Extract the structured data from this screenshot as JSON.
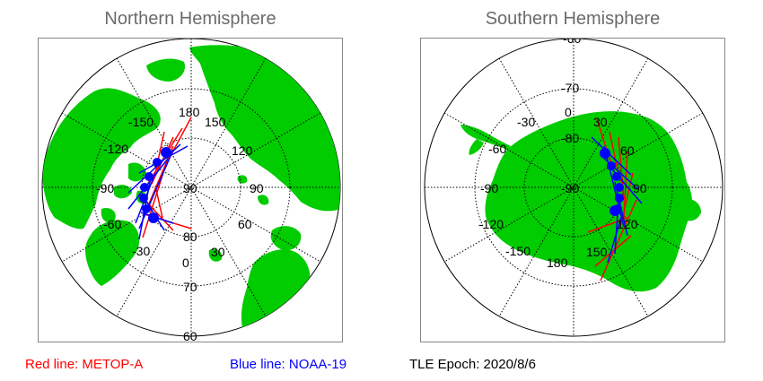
{
  "north": {
    "title": "Northern Hemisphere",
    "lon_labels": [
      "180",
      "150",
      "120",
      "90",
      "60",
      "30",
      "0",
      "-30",
      "-60",
      "-90",
      "-120",
      "-150"
    ],
    "lat_labels": [
      "90",
      "80",
      "70",
      "60"
    ]
  },
  "south": {
    "title": "Southern Hemisphere",
    "lon_labels": [
      "0",
      "30",
      "60",
      "90",
      "120",
      "150",
      "180",
      "-150",
      "-120",
      "-90",
      "-60",
      "-30"
    ],
    "lat_labels": [
      "-90",
      "-80",
      "-70",
      "-60"
    ]
  },
  "legend": {
    "red": "Red line: METOP-A",
    "blue": "Blue line: NOAA-19",
    "epoch": "TLE Epoch: 2020/8/6"
  },
  "colors": {
    "land": "#00cc00",
    "ocean": "#ffffff",
    "metop": "#ff0000",
    "noaa": "#0000ff",
    "grid": "#000000",
    "title": "#6b6b6b"
  }
}
